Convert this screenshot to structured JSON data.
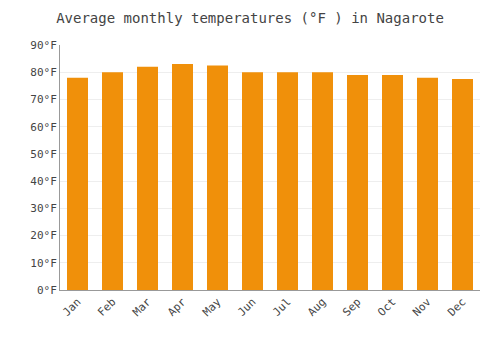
{
  "chart_data": {
    "type": "bar",
    "title": "Average monthly temperatures (°F ) in Nagarote",
    "categories": [
      "Jan",
      "Feb",
      "Mar",
      "Apr",
      "May",
      "Jun",
      "Jul",
      "Aug",
      "Sep",
      "Oct",
      "Nov",
      "Dec"
    ],
    "values": [
      78,
      80,
      82,
      83,
      82.5,
      80,
      80,
      80,
      79,
      79,
      78,
      77.5
    ],
    "color": "#F0900A",
    "ylim": [
      0,
      90
    ],
    "yticks": [
      {
        "value": 0,
        "label": "0°F"
      },
      {
        "value": 10,
        "label": "10°F"
      },
      {
        "value": 20,
        "label": "20°F"
      },
      {
        "value": 30,
        "label": "30°F"
      },
      {
        "value": 40,
        "label": "40°F"
      },
      {
        "value": 50,
        "label": "50°F"
      },
      {
        "value": 60,
        "label": "60°F"
      },
      {
        "value": 70,
        "label": "70°F"
      },
      {
        "value": 80,
        "label": "80°F"
      },
      {
        "value": 90,
        "label": "90°F"
      }
    ],
    "grid": true
  }
}
